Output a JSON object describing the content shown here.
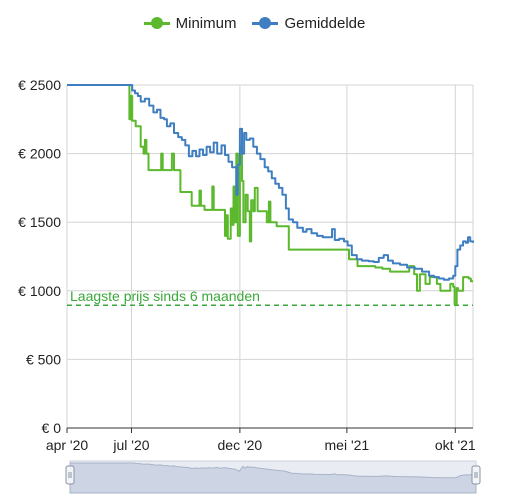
{
  "legend": {
    "items": [
      {
        "label": "Minimum",
        "color": "#5cb82c"
      },
      {
        "label": "Gemiddelde",
        "color": "#3f7fc1"
      }
    ]
  },
  "reference_line": {
    "label": "Laagste prijs sinds 6 maanden",
    "value": 895,
    "color": "#3aa83a"
  },
  "chart_data": {
    "type": "line",
    "title": "",
    "xlabel": "",
    "ylabel": "",
    "x_range": [
      "2020-04-01",
      "2021-10-26"
    ],
    "ylim": [
      0,
      2500
    ],
    "y_ticks": [
      {
        "value": 0,
        "label": "€ 0"
      },
      {
        "value": 500,
        "label": "€ 500"
      },
      {
        "value": 1000,
        "label": "€ 1000"
      },
      {
        "value": 1500,
        "label": "€ 1500"
      },
      {
        "value": 2000,
        "label": "€ 2000"
      },
      {
        "value": 2500,
        "label": "€ 2500"
      }
    ],
    "x_ticks": [
      {
        "date": "2020-04-01",
        "label": "apr '20"
      },
      {
        "date": "2020-07-01",
        "label": "jul '20"
      },
      {
        "date": "2020-12-01",
        "label": "dec '20"
      },
      {
        "date": "2021-05-01",
        "label": "mei '21"
      },
      {
        "date": "2021-10-01",
        "label": "okt '21"
      }
    ],
    "grid": true,
    "legend_position": "top",
    "series": [
      {
        "name": "Minimum",
        "color": "#5cb82c",
        "points": [
          [
            "2020-04-01",
            2500
          ],
          [
            "2020-06-27",
            2500
          ],
          [
            "2020-06-28",
            2250
          ],
          [
            "2020-06-30",
            2420
          ],
          [
            "2020-07-02",
            2240
          ],
          [
            "2020-07-07",
            2200
          ],
          [
            "2020-07-10",
            2200
          ],
          [
            "2020-07-14",
            2050
          ],
          [
            "2020-07-18",
            2000
          ],
          [
            "2020-07-20",
            2100
          ],
          [
            "2020-07-22",
            2000
          ],
          [
            "2020-07-25",
            1880
          ],
          [
            "2020-08-10",
            1880
          ],
          [
            "2020-08-12",
            2000
          ],
          [
            "2020-08-14",
            1880
          ],
          [
            "2020-08-25",
            1880
          ],
          [
            "2020-08-27",
            2000
          ],
          [
            "2020-08-30",
            1880
          ],
          [
            "2020-09-05",
            1880
          ],
          [
            "2020-09-08",
            1720
          ],
          [
            "2020-09-20",
            1720
          ],
          [
            "2020-09-24",
            1620
          ],
          [
            "2020-10-02",
            1620
          ],
          [
            "2020-10-05",
            1730
          ],
          [
            "2020-10-07",
            1620
          ],
          [
            "2020-10-12",
            1590
          ],
          [
            "2020-10-20",
            1590
          ],
          [
            "2020-10-23",
            1760
          ],
          [
            "2020-10-25",
            1590
          ],
          [
            "2020-11-08",
            1590
          ],
          [
            "2020-11-10",
            1400
          ],
          [
            "2020-11-12",
            1550
          ],
          [
            "2020-11-14",
            1380
          ],
          [
            "2020-11-18",
            1600
          ],
          [
            "2020-11-20",
            1480
          ],
          [
            "2020-11-22",
            1760
          ],
          [
            "2020-11-24",
            1500
          ],
          [
            "2020-11-26",
            2000
          ],
          [
            "2020-11-28",
            1400
          ],
          [
            "2020-12-01",
            2050
          ],
          [
            "2020-12-04",
            1800
          ],
          [
            "2020-12-06",
            1500
          ],
          [
            "2020-12-09",
            1700
          ],
          [
            "2020-12-12",
            1580
          ],
          [
            "2020-12-15",
            1360
          ],
          [
            "2020-12-17",
            1660
          ],
          [
            "2020-12-20",
            1580
          ],
          [
            "2020-12-22",
            1750
          ],
          [
            "2020-12-26",
            1580
          ],
          [
            "2021-01-05",
            1580
          ],
          [
            "2021-01-08",
            1500
          ],
          [
            "2021-01-11",
            1650
          ],
          [
            "2021-01-13",
            1500
          ],
          [
            "2021-01-20",
            1500
          ],
          [
            "2021-01-22",
            1470
          ],
          [
            "2021-02-05",
            1470
          ],
          [
            "2021-02-08",
            1300
          ],
          [
            "2021-04-01",
            1300
          ],
          [
            "2021-04-30",
            1300
          ],
          [
            "2021-05-04",
            1230
          ],
          [
            "2021-05-12",
            1230
          ],
          [
            "2021-05-16",
            1180
          ],
          [
            "2021-06-01",
            1180
          ],
          [
            "2021-06-10",
            1170
          ],
          [
            "2021-06-20",
            1160
          ],
          [
            "2021-07-01",
            1140
          ],
          [
            "2021-07-25",
            1140
          ],
          [
            "2021-07-28",
            1180
          ],
          [
            "2021-08-04",
            1120
          ],
          [
            "2021-08-08",
            1000
          ],
          [
            "2021-08-12",
            1120
          ],
          [
            "2021-08-20",
            1050
          ],
          [
            "2021-08-26",
            1100
          ],
          [
            "2021-09-05",
            1050
          ],
          [
            "2021-09-10",
            1000
          ],
          [
            "2021-09-18",
            1000
          ],
          [
            "2021-09-24",
            1050
          ],
          [
            "2021-09-28",
            1030
          ],
          [
            "2021-09-30",
            900
          ],
          [
            "2021-10-03",
            1020
          ],
          [
            "2021-10-05",
            1000
          ],
          [
            "2021-10-10",
            1000
          ],
          [
            "2021-10-12",
            1100
          ],
          [
            "2021-10-20",
            1090
          ],
          [
            "2021-10-23",
            1070
          ],
          [
            "2021-10-26",
            1070
          ]
        ]
      },
      {
        "name": "Gemiddelde",
        "color": "#3f7fc1",
        "points": [
          [
            "2020-04-01",
            2500
          ],
          [
            "2020-06-30",
            2500
          ],
          [
            "2020-07-02",
            2460
          ],
          [
            "2020-07-06",
            2440
          ],
          [
            "2020-07-10",
            2420
          ],
          [
            "2020-07-14",
            2380
          ],
          [
            "2020-07-20",
            2400
          ],
          [
            "2020-07-26",
            2350
          ],
          [
            "2020-08-01",
            2300
          ],
          [
            "2020-08-06",
            2320
          ],
          [
            "2020-08-11",
            2260
          ],
          [
            "2020-08-16",
            2250
          ],
          [
            "2020-08-20",
            2200
          ],
          [
            "2020-08-25",
            2220
          ],
          [
            "2020-08-30",
            2150
          ],
          [
            "2020-09-05",
            2120
          ],
          [
            "2020-09-10",
            2100
          ],
          [
            "2020-09-15",
            2060
          ],
          [
            "2020-09-20",
            1980
          ],
          [
            "2020-09-25",
            2020
          ],
          [
            "2020-09-30",
            1980
          ],
          [
            "2020-10-05",
            2030
          ],
          [
            "2020-10-10",
            1990
          ],
          [
            "2020-10-15",
            2050
          ],
          [
            "2020-10-20",
            2010
          ],
          [
            "2020-10-25",
            2080
          ],
          [
            "2020-10-30",
            2000
          ],
          [
            "2020-11-05",
            2060
          ],
          [
            "2020-11-10",
            1990
          ],
          [
            "2020-11-15",
            1940
          ],
          [
            "2020-11-20",
            1900
          ],
          [
            "2020-11-26",
            1700
          ],
          [
            "2020-11-28",
            1920
          ],
          [
            "2020-12-01",
            2180
          ],
          [
            "2020-12-04",
            2000
          ],
          [
            "2020-12-07",
            2150
          ],
          [
            "2020-12-10",
            2100
          ],
          [
            "2020-12-15",
            2110
          ],
          [
            "2020-12-20",
            2050
          ],
          [
            "2020-12-25",
            2000
          ],
          [
            "2020-12-30",
            1960
          ],
          [
            "2021-01-05",
            1900
          ],
          [
            "2021-01-10",
            1870
          ],
          [
            "2021-01-15",
            1820
          ],
          [
            "2021-01-20",
            1780
          ],
          [
            "2021-01-25",
            1750
          ],
          [
            "2021-01-30",
            1700
          ],
          [
            "2021-02-04",
            1600
          ],
          [
            "2021-02-08",
            1520
          ],
          [
            "2021-02-14",
            1500
          ],
          [
            "2021-02-20",
            1460
          ],
          [
            "2021-02-28",
            1430
          ],
          [
            "2021-03-05",
            1450
          ],
          [
            "2021-03-12",
            1420
          ],
          [
            "2021-03-20",
            1400
          ],
          [
            "2021-03-28",
            1390
          ],
          [
            "2021-04-04",
            1390
          ],
          [
            "2021-04-10",
            1450
          ],
          [
            "2021-04-14",
            1370
          ],
          [
            "2021-04-20",
            1380
          ],
          [
            "2021-04-27",
            1360
          ],
          [
            "2021-05-02",
            1330
          ],
          [
            "2021-05-08",
            1260
          ],
          [
            "2021-05-15",
            1230
          ],
          [
            "2021-05-22",
            1220
          ],
          [
            "2021-06-01",
            1215
          ],
          [
            "2021-06-08",
            1210
          ],
          [
            "2021-06-15",
            1240
          ],
          [
            "2021-06-22",
            1260
          ],
          [
            "2021-06-28",
            1220
          ],
          [
            "2021-07-05",
            1200
          ],
          [
            "2021-07-15",
            1190
          ],
          [
            "2021-07-25",
            1170
          ],
          [
            "2021-08-05",
            1160
          ],
          [
            "2021-08-15",
            1140
          ],
          [
            "2021-08-25",
            1110
          ],
          [
            "2021-09-01",
            1100
          ],
          [
            "2021-09-08",
            1090
          ],
          [
            "2021-09-15",
            1080
          ],
          [
            "2021-09-22",
            1090
          ],
          [
            "2021-09-28",
            1110
          ],
          [
            "2021-10-01",
            1180
          ],
          [
            "2021-10-04",
            1300
          ],
          [
            "2021-10-08",
            1330
          ],
          [
            "2021-10-12",
            1360
          ],
          [
            "2021-10-16",
            1350
          ],
          [
            "2021-10-19",
            1390
          ],
          [
            "2021-10-22",
            1360
          ],
          [
            "2021-10-26",
            1350
          ]
        ]
      }
    ]
  }
}
